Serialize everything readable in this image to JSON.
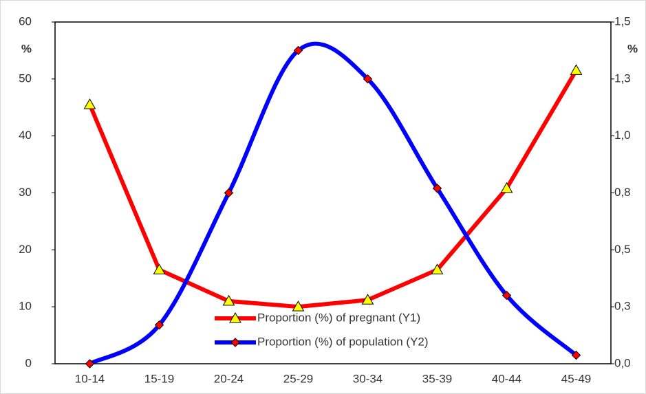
{
  "chart_data": {
    "type": "line",
    "categories": [
      "10-14",
      "15-19",
      "20-24",
      "25-29",
      "30-34",
      "35-39",
      "40-44",
      "45-49"
    ],
    "series": [
      {
        "name": "Proportion (%) of pregnant (Y1)",
        "color": "#ff0000",
        "marker": "triangle",
        "marker_color": "#ffff00",
        "smooth": false,
        "axis": "y",
        "values": [
          45.5,
          16.5,
          11,
          10,
          11.2,
          16.5,
          30.8,
          51.5
        ]
      },
      {
        "name": "Proportion (%) of population (Y2)",
        "color": "#0000ff",
        "marker": "diamond",
        "marker_color": "#ff0000",
        "smooth": true,
        "axis": "y2",
        "values": [
          0,
          0.17,
          0.75,
          1.375,
          1.25,
          0.77,
          0.3,
          0.0375
        ]
      }
    ],
    "y_label": "%",
    "y2_label": "%",
    "ylim": [
      0,
      60
    ],
    "yticks": [
      0,
      10,
      20,
      30,
      40,
      50,
      60
    ],
    "y2lim": [
      0,
      1.5
    ],
    "y2ticks": [
      {
        "value": 0,
        "label": "0,0"
      },
      {
        "value": 0.25,
        "label": "0,3"
      },
      {
        "value": 0.5,
        "label": "0,5"
      },
      {
        "value": 0.75,
        "label": "0,8"
      },
      {
        "value": 1,
        "label": "1,0"
      },
      {
        "value": 1.25,
        "label": "1,3"
      },
      {
        "value": 1.5,
        "label": "1,5"
      }
    ],
    "grid": false
  }
}
